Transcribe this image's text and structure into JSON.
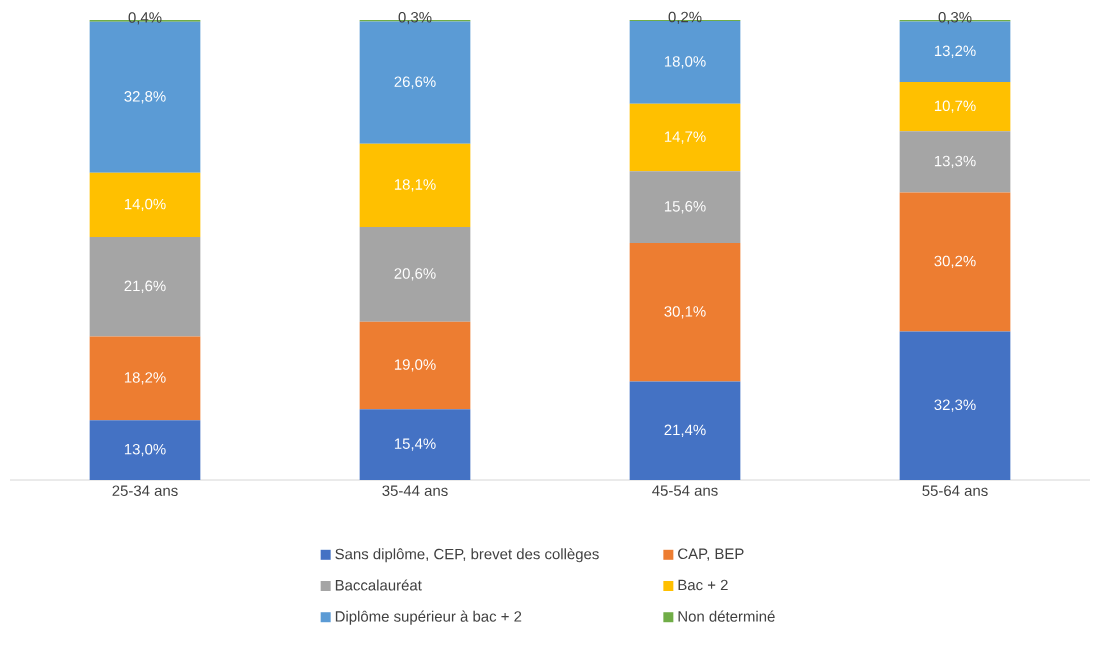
{
  "chart_data": {
    "type": "bar",
    "stacked": true,
    "legend": "bottom",
    "tick_labels": "x",
    "categories": [
      "25-34 ans",
      "35-44 ans",
      "45-54 ans",
      "55-64 ans"
    ],
    "series": [
      {
        "name": "Sans diplôme, CEP, brevet des collèges",
        "color": "#4472c4",
        "values": [
          13.0,
          15.4,
          21.4,
          32.3
        ],
        "value_labels": [
          "13,0%",
          "15,4%",
          "21,4%",
          "32,3%"
        ]
      },
      {
        "name": "CAP, BEP",
        "color": "#ed7d31",
        "values": [
          18.2,
          19.0,
          30.1,
          30.2
        ],
        "value_labels": [
          "18,2%",
          "19,0%",
          "30,1%",
          "30,2%"
        ]
      },
      {
        "name": "Baccalauréat",
        "color": "#a5a5a5",
        "values": [
          21.6,
          20.6,
          15.6,
          13.3
        ],
        "value_labels": [
          "21,6%",
          "20,6%",
          "15,6%",
          "13,3%"
        ]
      },
      {
        "name": "Bac + 2",
        "color": "#ffc000",
        "values": [
          14.0,
          18.1,
          14.7,
          10.7
        ],
        "value_labels": [
          "14,0%",
          "18,1%",
          "14,7%",
          "10,7%"
        ]
      },
      {
        "name": "Diplôme supérieur à bac + 2",
        "color": "#5b9bd5",
        "values": [
          32.8,
          26.6,
          18.0,
          13.2
        ],
        "value_labels": [
          "32,8%",
          "26,6%",
          "18,0%",
          "13,2%"
        ]
      },
      {
        "name": "Non déterminé",
        "color": "#70ad47",
        "values": [
          0.4,
          0.3,
          0.2,
          0.3
        ],
        "value_labels": [
          "0,4%",
          "0,3%",
          "0,2%",
          "0,3%"
        ]
      }
    ]
  }
}
